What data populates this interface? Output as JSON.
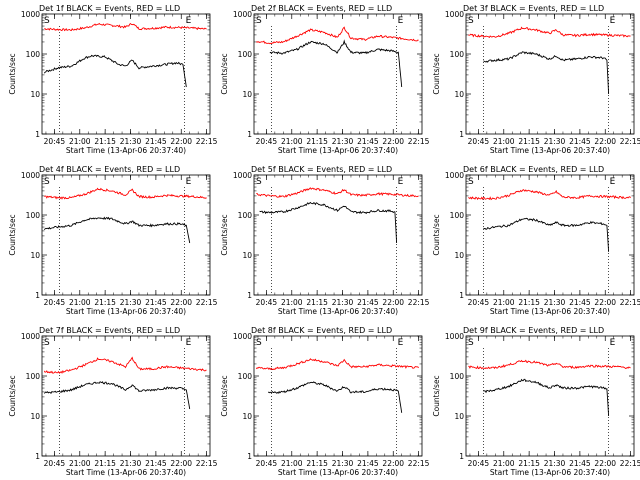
{
  "figure": {
    "background": "#ffffff",
    "axis_color": "#000000"
  },
  "chart_data": [
    {
      "type": "line",
      "title": "Det 1f BLACK = Events, RED = LLD",
      "xlabel": "Start Time (13-Apr-06 20:37:40)",
      "ylabel": "Counts/sec",
      "x_ticks": [
        "20:45",
        "21:00",
        "21:15",
        "21:30",
        "21:45",
        "22:00",
        "22:15"
      ],
      "x_range": [
        "20:37:40",
        "22:17:00"
      ],
      "y_scale": "log",
      "y_range": [
        1,
        1000
      ],
      "y_ticks": [
        "1",
        "10",
        "100",
        "1000"
      ],
      "markers": [
        {
          "label": "S",
          "time": "20:37:40"
        },
        {
          "label": "E",
          "time": "22:02:00"
        }
      ],
      "series": [
        {
          "name": "LLD",
          "color": "#ff0000",
          "x": [
            "20:39",
            "20:47",
            "20:55",
            "21:03",
            "21:11",
            "21:19",
            "21:27",
            "21:31",
            "21:35",
            "21:43",
            "21:51",
            "21:59",
            "22:07",
            "22:15"
          ],
          "values": [
            430,
            410,
            400,
            450,
            560,
            520,
            470,
            580,
            430,
            440,
            470,
            460,
            440,
            420
          ]
        },
        {
          "name": "Events",
          "color": "#000000",
          "x": [
            "20:39",
            "20:47",
            "20:55",
            "21:03",
            "21:07",
            "21:15",
            "21:23",
            "21:27",
            "21:31",
            "21:35",
            "21:43",
            "21:51",
            "21:57",
            "22:01",
            "22:03"
          ],
          "values": [
            35,
            45,
            50,
            80,
            90,
            85,
            55,
            50,
            70,
            45,
            50,
            55,
            60,
            55,
            15
          ]
        }
      ]
    },
    {
      "type": "line",
      "title": "Det 2f BLACK = Events, RED = LLD",
      "xlabel": "Start Time (13-Apr-06 20:37:40)",
      "ylabel": "Counts/sec",
      "x_ticks": [
        "20:45",
        "21:00",
        "21:15",
        "21:30",
        "21:45",
        "22:00",
        "22:15"
      ],
      "x_range": [
        "20:37:40",
        "22:17:00"
      ],
      "y_scale": "log",
      "y_range": [
        1,
        1000
      ],
      "y_ticks": [
        "1",
        "10",
        "100",
        "1000"
      ],
      "markers": [
        {
          "label": "S",
          "time": "20:37:40"
        },
        {
          "label": "E",
          "time": "22:02:00"
        }
      ],
      "series": [
        {
          "name": "LLD",
          "color": "#ff0000",
          "x": [
            "20:39",
            "20:47",
            "20:55",
            "21:03",
            "21:11",
            "21:19",
            "21:27",
            "21:31",
            "21:35",
            "21:43",
            "21:51",
            "21:59",
            "22:07",
            "22:15"
          ],
          "values": [
            210,
            190,
            200,
            280,
            400,
            350,
            260,
            460,
            250,
            230,
            280,
            260,
            240,
            220
          ]
        },
        {
          "name": "Events",
          "color": "#000000",
          "x": [
            "20:47",
            "20:55",
            "21:03",
            "21:11",
            "21:19",
            "21:27",
            "21:31",
            "21:35",
            "21:43",
            "21:51",
            "21:59",
            "22:03",
            "22:05"
          ],
          "values": [
            110,
            105,
            130,
            200,
            180,
            110,
            200,
            110,
            105,
            130,
            120,
            110,
            15
          ]
        }
      ]
    },
    {
      "type": "line",
      "title": "Det 3f BLACK = Events, RED = LLD",
      "xlabel": "Start Time (13-Apr-06 20:37:40)",
      "ylabel": "Counts/sec",
      "x_ticks": [
        "20:45",
        "21:00",
        "21:15",
        "21:30",
        "21:45",
        "22:00",
        "22:15"
      ],
      "x_range": [
        "20:37:40",
        "22:17:00"
      ],
      "y_scale": "log",
      "y_range": [
        1,
        1000
      ],
      "y_ticks": [
        "1",
        "10",
        "100",
        "1000"
      ],
      "markers": [
        {
          "label": "S",
          "time": "20:37:40"
        },
        {
          "label": "E",
          "time": "22:02:00"
        }
      ],
      "series": [
        {
          "name": "LLD",
          "color": "#ff0000",
          "x": [
            "20:39",
            "20:47",
            "20:55",
            "21:03",
            "21:11",
            "21:19",
            "21:27",
            "21:31",
            "21:35",
            "21:43",
            "21:51",
            "21:59",
            "22:07",
            "22:15"
          ],
          "values": [
            300,
            280,
            270,
            330,
            450,
            400,
            330,
            400,
            300,
            290,
            310,
            300,
            290,
            280
          ]
        },
        {
          "name": "Events",
          "color": "#000000",
          "x": [
            "20:48",
            "20:55",
            "21:03",
            "21:11",
            "21:19",
            "21:27",
            "21:31",
            "21:35",
            "21:43",
            "21:51",
            "21:59",
            "22:01",
            "22:02"
          ],
          "values": [
            65,
            70,
            75,
            110,
            100,
            75,
            90,
            70,
            75,
            85,
            80,
            70,
            10
          ]
        }
      ]
    },
    {
      "type": "line",
      "title": "Det 4f BLACK = Events, RED = LLD",
      "xlabel": "Start Time (13-Apr-06 20:37:40)",
      "ylabel": "Counts/sec",
      "x_ticks": [
        "20:45",
        "21:00",
        "21:15",
        "21:30",
        "21:45",
        "22:00",
        "22:15"
      ],
      "x_range": [
        "20:37:40",
        "22:17:00"
      ],
      "y_scale": "log",
      "y_range": [
        1,
        1000
      ],
      "y_ticks": [
        "1",
        "10",
        "100",
        "1000"
      ],
      "markers": [
        {
          "label": "S",
          "time": "20:37:40"
        },
        {
          "label": "E",
          "time": "22:02:00"
        }
      ],
      "series": [
        {
          "name": "LLD",
          "color": "#ff0000",
          "x": [
            "20:39",
            "20:47",
            "20:55",
            "21:03",
            "21:11",
            "21:19",
            "21:27",
            "21:31",
            "21:35",
            "21:43",
            "21:51",
            "21:59",
            "22:07",
            "22:15"
          ],
          "values": [
            290,
            270,
            270,
            330,
            450,
            400,
            320,
            420,
            290,
            280,
            310,
            300,
            290,
            270
          ]
        },
        {
          "name": "Events",
          "color": "#000000",
          "x": [
            "20:39",
            "20:47",
            "20:55",
            "21:03",
            "21:11",
            "21:19",
            "21:27",
            "21:31",
            "21:35",
            "21:43",
            "21:51",
            "21:59",
            "22:03",
            "22:05"
          ],
          "values": [
            45,
            50,
            55,
            75,
            85,
            80,
            60,
            70,
            55,
            55,
            60,
            60,
            55,
            20
          ]
        }
      ]
    },
    {
      "type": "line",
      "title": "Det 5f BLACK = Events, RED = LLD",
      "xlabel": "Start Time (13-Apr-06 20:37:40)",
      "ylabel": "Counts/sec",
      "x_ticks": [
        "20:45",
        "21:00",
        "21:15",
        "21:30",
        "21:45",
        "22:00",
        "22:15"
      ],
      "x_range": [
        "20:37:40",
        "22:17:00"
      ],
      "y_scale": "log",
      "y_range": [
        1,
        1000
      ],
      "y_ticks": [
        "1",
        "10",
        "100",
        "1000"
      ],
      "markers": [
        {
          "label": "S",
          "time": "20:37:40"
        },
        {
          "label": "E",
          "time": "22:02:00"
        }
      ],
      "series": [
        {
          "name": "LLD",
          "color": "#ff0000",
          "x": [
            "20:39",
            "20:47",
            "20:55",
            "21:03",
            "21:11",
            "21:19",
            "21:27",
            "21:31",
            "21:35",
            "21:43",
            "21:51",
            "21:59",
            "22:07",
            "22:15"
          ],
          "values": [
            330,
            300,
            290,
            350,
            470,
            420,
            340,
            430,
            320,
            310,
            340,
            330,
            310,
            300
          ]
        },
        {
          "name": "Events",
          "color": "#000000",
          "x": [
            "20:41",
            "20:47",
            "20:55",
            "21:03",
            "21:11",
            "21:19",
            "21:27",
            "21:31",
            "21:35",
            "21:43",
            "21:51",
            "21:59",
            "22:01",
            "22:02"
          ],
          "values": [
            120,
            115,
            120,
            150,
            200,
            180,
            130,
            170,
            120,
            115,
            130,
            125,
            120,
            20
          ]
        }
      ]
    },
    {
      "type": "line",
      "title": "Det 6f BLACK = Events, RED = LLD",
      "xlabel": "Start Time (13-Apr-06 20:37:40)",
      "ylabel": "Counts/sec",
      "x_ticks": [
        "20:45",
        "21:00",
        "21:15",
        "21:30",
        "21:45",
        "22:00",
        "22:15"
      ],
      "x_range": [
        "20:37:40",
        "22:17:00"
      ],
      "y_scale": "log",
      "y_range": [
        1,
        1000
      ],
      "y_ticks": [
        "1",
        "10",
        "100",
        "1000"
      ],
      "markers": [
        {
          "label": "S",
          "time": "20:37:40"
        },
        {
          "label": "E",
          "time": "22:02:00"
        }
      ],
      "series": [
        {
          "name": "LLD",
          "color": "#ff0000",
          "x": [
            "20:39",
            "20:47",
            "20:55",
            "21:03",
            "21:11",
            "21:19",
            "21:27",
            "21:31",
            "21:35",
            "21:43",
            "21:51",
            "21:59",
            "22:07",
            "22:15"
          ],
          "values": [
            270,
            260,
            260,
            310,
            420,
            380,
            310,
            380,
            280,
            270,
            300,
            290,
            280,
            270
          ]
        },
        {
          "name": "Events",
          "color": "#000000",
          "x": [
            "20:48",
            "20:55",
            "21:03",
            "21:11",
            "21:19",
            "21:27",
            "21:31",
            "21:35",
            "21:43",
            "21:51",
            "21:59",
            "22:01",
            "22:02"
          ],
          "values": [
            45,
            50,
            55,
            80,
            75,
            55,
            65,
            55,
            55,
            65,
            60,
            55,
            12
          ]
        }
      ]
    },
    {
      "type": "line",
      "title": "Det 7f BLACK = Events, RED = LLD",
      "xlabel": "Start Time (13-Apr-06 20:37:40)",
      "ylabel": "Counts/sec",
      "x_ticks": [
        "20:45",
        "21:00",
        "21:15",
        "21:30",
        "21:45",
        "22:00",
        "22:15"
      ],
      "x_range": [
        "20:37:40",
        "22:17:00"
      ],
      "y_scale": "log",
      "y_range": [
        1,
        1000
      ],
      "y_ticks": [
        "1",
        "10",
        "100",
        "1000"
      ],
      "markers": [
        {
          "label": "S",
          "time": "20:37:40"
        },
        {
          "label": "E",
          "time": "22:02:00"
        }
      ],
      "series": [
        {
          "name": "LLD",
          "color": "#ff0000",
          "x": [
            "20:39",
            "20:47",
            "20:55",
            "21:03",
            "21:11",
            "21:19",
            "21:27",
            "21:31",
            "21:35",
            "21:43",
            "21:51",
            "21:59",
            "22:07",
            "22:15"
          ],
          "values": [
            130,
            120,
            140,
            190,
            270,
            230,
            170,
            280,
            150,
            150,
            170,
            160,
            150,
            140
          ]
        },
        {
          "name": "Events",
          "color": "#000000",
          "x": [
            "20:39",
            "20:47",
            "20:55",
            "21:03",
            "21:11",
            "21:19",
            "21:27",
            "21:31",
            "21:35",
            "21:43",
            "21:51",
            "21:59",
            "22:03",
            "22:05"
          ],
          "values": [
            38,
            40,
            45,
            60,
            70,
            65,
            45,
            60,
            42,
            45,
            50,
            50,
            45,
            15
          ]
        }
      ]
    },
    {
      "type": "line",
      "title": "Det 8f BLACK = Events, RED = LLD",
      "xlabel": "Start Time (13-Apr-06 20:37:40)",
      "ylabel": "Counts/sec",
      "x_ticks": [
        "20:45",
        "21:00",
        "21:15",
        "21:30",
        "21:45",
        "22:00",
        "22:15"
      ],
      "x_range": [
        "20:37:40",
        "22:17:00"
      ],
      "y_scale": "log",
      "y_range": [
        1,
        1000
      ],
      "y_ticks": [
        "1",
        "10",
        "100",
        "1000"
      ],
      "markers": [
        {
          "label": "S",
          "time": "20:37:40"
        },
        {
          "label": "E",
          "time": "22:02:00"
        }
      ],
      "series": [
        {
          "name": "LLD",
          "color": "#ff0000",
          "x": [
            "20:39",
            "20:47",
            "20:55",
            "21:03",
            "21:11",
            "21:19",
            "21:27",
            "21:31",
            "21:35",
            "21:43",
            "21:51",
            "21:59",
            "22:07",
            "22:15"
          ],
          "values": [
            160,
            150,
            160,
            200,
            260,
            230,
            180,
            250,
            170,
            170,
            190,
            180,
            170,
            160
          ]
        },
        {
          "name": "Events",
          "color": "#000000",
          "x": [
            "20:46",
            "20:55",
            "21:03",
            "21:11",
            "21:19",
            "21:27",
            "21:31",
            "21:35",
            "21:43",
            "21:51",
            "21:59",
            "22:03",
            "22:05"
          ],
          "values": [
            38,
            40,
            50,
            70,
            60,
            42,
            55,
            40,
            40,
            48,
            46,
            42,
            12
          ]
        }
      ]
    },
    {
      "type": "line",
      "title": "Det 9f BLACK = Events, RED = LLD",
      "xlabel": "Start Time (13-Apr-06 20:37:40)",
      "ylabel": "Counts/sec",
      "x_ticks": [
        "20:45",
        "21:00",
        "21:15",
        "21:30",
        "21:45",
        "22:00",
        "22:15"
      ],
      "x_range": [
        "20:37:40",
        "22:17:00"
      ],
      "y_scale": "log",
      "y_range": [
        1,
        1000
      ],
      "y_ticks": [
        "1",
        "10",
        "100",
        "1000"
      ],
      "markers": [
        {
          "label": "S",
          "time": "20:37:40"
        },
        {
          "label": "E",
          "time": "22:02:00"
        }
      ],
      "series": [
        {
          "name": "LLD",
          "color": "#ff0000",
          "x": [
            "20:39",
            "20:47",
            "20:55",
            "21:03",
            "21:11",
            "21:19",
            "21:27",
            "21:31",
            "21:35",
            "21:43",
            "21:51",
            "21:59",
            "22:07",
            "22:15"
          ],
          "values": [
            170,
            160,
            160,
            190,
            240,
            220,
            180,
            210,
            170,
            165,
            180,
            175,
            170,
            160
          ]
        },
        {
          "name": "Events",
          "color": "#000000",
          "x": [
            "20:48",
            "20:55",
            "21:03",
            "21:11",
            "21:19",
            "21:27",
            "21:31",
            "21:35",
            "21:43",
            "21:51",
            "21:59",
            "22:01",
            "22:02"
          ],
          "values": [
            40,
            45,
            55,
            80,
            70,
            50,
            60,
            50,
            50,
            55,
            50,
            48,
            10
          ]
        }
      ]
    }
  ]
}
